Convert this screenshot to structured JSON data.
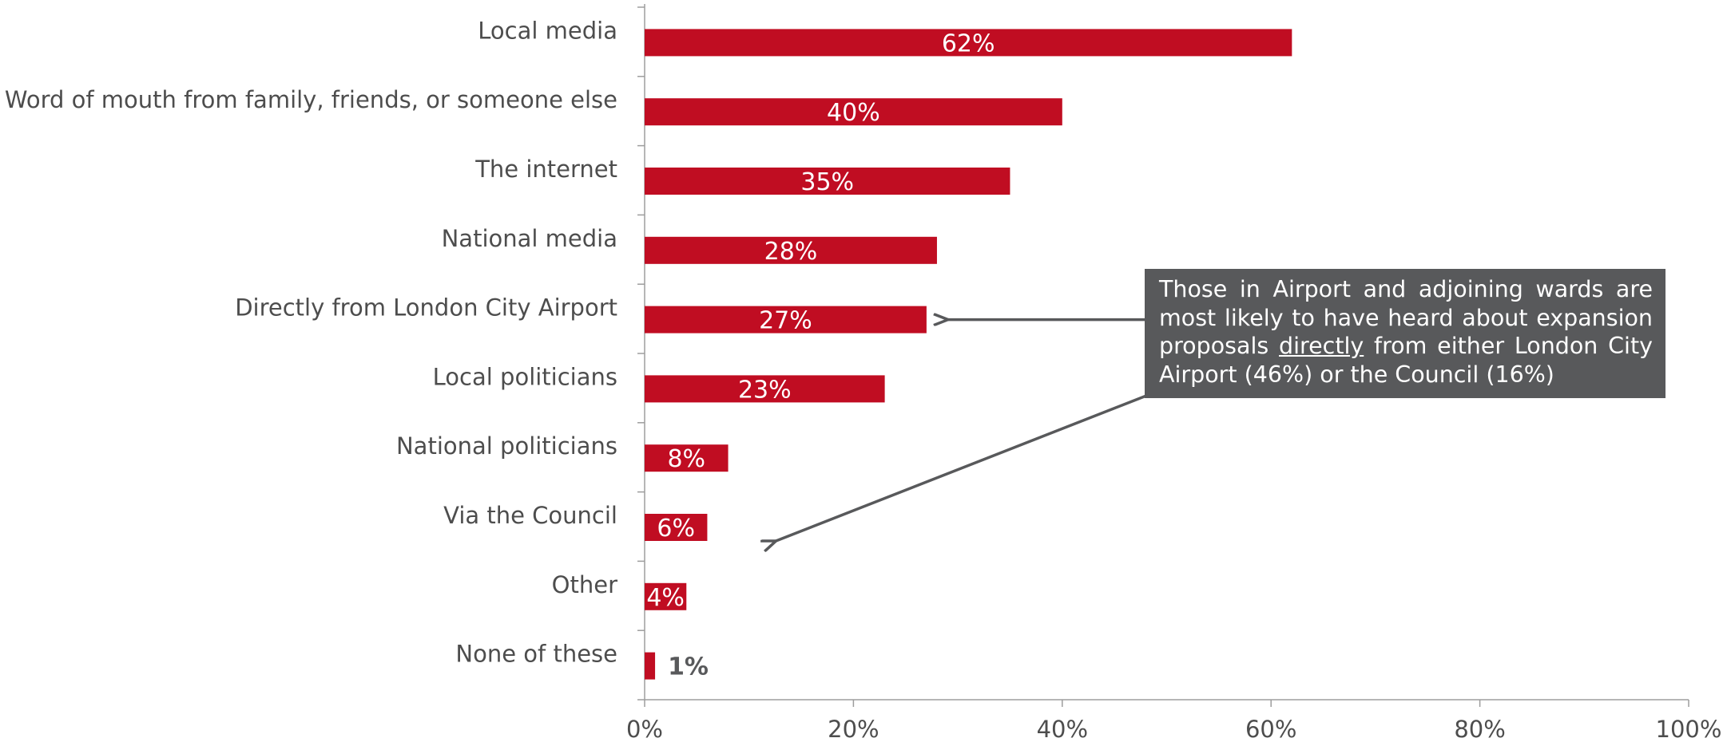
{
  "chart_data": {
    "type": "bar",
    "orientation": "horizontal",
    "categories": [
      "Local media",
      "Word of mouth from family, friends, or someone else",
      "The internet",
      "National media",
      "Directly from London City Airport",
      "Local politicians",
      "National politicians",
      "Via the Council",
      "Other",
      "None of these"
    ],
    "values": [
      62,
      40,
      35,
      28,
      27,
      23,
      8,
      6,
      4,
      1
    ],
    "data_labels": [
      "62%",
      "40%",
      "35%",
      "28%",
      "27%",
      "23%",
      "8%",
      "6%",
      "4%",
      "1%"
    ],
    "xlim": [
      0,
      100
    ],
    "x_ticks": [
      0,
      20,
      40,
      60,
      80,
      100
    ],
    "x_tick_labels": [
      "0%",
      "20%",
      "40%",
      "60%",
      "80%",
      "100%"
    ],
    "title": "",
    "xlabel": "",
    "ylabel": "",
    "grid": false,
    "legend": "none",
    "colors": {
      "bar": "#c00d22",
      "axis": "#9d9d9d",
      "text": "#4d4d4d",
      "outside_label": "#58595b",
      "callout_bg": "#58595b",
      "callout_text": "#ffffff",
      "arrow": "#58595b"
    },
    "annotation": {
      "text_before": "Those in Airport and adjoining wards are most likely to have heard about expansion proposals ",
      "text_underlined": "directly",
      "text_after": " from either London City Airport (46%) or the Council (16%)",
      "points_to": [
        "Directly from London City Airport",
        "Via the Council"
      ]
    }
  }
}
